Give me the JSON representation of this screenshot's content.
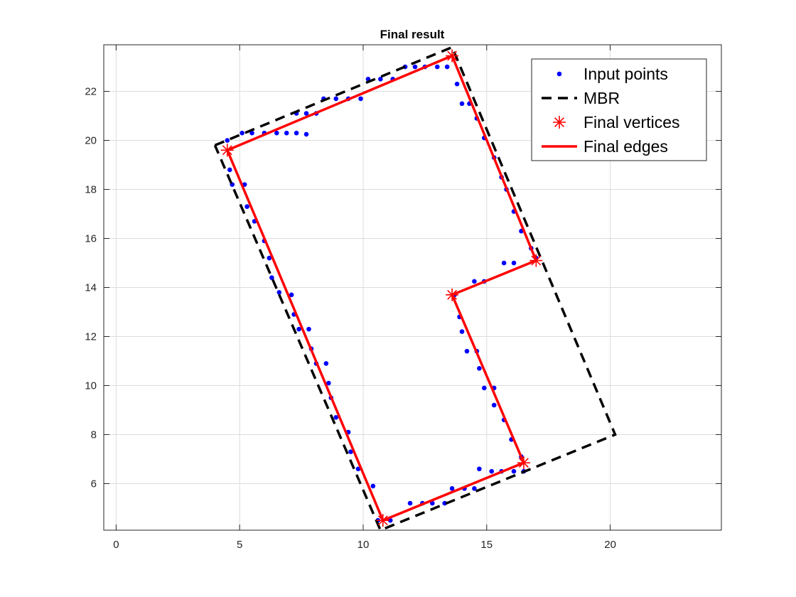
{
  "chart_data": {
    "type": "scatter",
    "title": "Final result",
    "xlabel": "",
    "ylabel": "",
    "xlim": [
      -0.5,
      24.5
    ],
    "ylim": [
      4.1,
      23.9
    ],
    "xticks": [
      0,
      5,
      10,
      15,
      20
    ],
    "yticks": [
      6,
      8,
      10,
      12,
      14,
      16,
      18,
      20,
      22
    ],
    "grid": true,
    "legend_position": "top-right",
    "series": [
      {
        "name": "Input points",
        "kind": "points",
        "color": "#0000ff",
        "points": [
          [
            4.6,
            18.8
          ],
          [
            4.7,
            18.2
          ],
          [
            5.2,
            18.2
          ],
          [
            5.3,
            17.3
          ],
          [
            5.6,
            16.7
          ],
          [
            6.0,
            15.9
          ],
          [
            6.2,
            15.2
          ],
          [
            6.3,
            14.4
          ],
          [
            6.6,
            13.8
          ],
          [
            7.1,
            13.7
          ],
          [
            7.2,
            12.9
          ],
          [
            7.4,
            12.3
          ],
          [
            7.8,
            12.3
          ],
          [
            7.9,
            11.5
          ],
          [
            8.1,
            10.9
          ],
          [
            8.5,
            10.9
          ],
          [
            8.6,
            10.1
          ],
          [
            8.7,
            9.5
          ],
          [
            8.9,
            8.7
          ],
          [
            9.4,
            8.1
          ],
          [
            9.5,
            7.3
          ],
          [
            9.8,
            6.6
          ],
          [
            10.4,
            5.9
          ],
          [
            10.6,
            4.5
          ],
          [
            4.5,
            20.0
          ],
          [
            5.1,
            20.3
          ],
          [
            5.5,
            20.3
          ],
          [
            6.0,
            20.3
          ],
          [
            6.5,
            20.3
          ],
          [
            6.9,
            20.3
          ],
          [
            7.3,
            20.3
          ],
          [
            7.7,
            20.25
          ],
          [
            7.3,
            21.1
          ],
          [
            7.7,
            21.1
          ],
          [
            8.1,
            21.1
          ],
          [
            8.4,
            21.7
          ],
          [
            8.9,
            21.7
          ],
          [
            9.4,
            21.7
          ],
          [
            9.9,
            21.7
          ],
          [
            10.2,
            22.5
          ],
          [
            10.7,
            22.5
          ],
          [
            11.2,
            22.5
          ],
          [
            11.7,
            23.0
          ],
          [
            12.1,
            23.0
          ],
          [
            12.5,
            23.0
          ],
          [
            13.0,
            23.0
          ],
          [
            13.4,
            23.0
          ],
          [
            13.8,
            22.3
          ],
          [
            14.0,
            21.5
          ],
          [
            14.3,
            21.5
          ],
          [
            14.6,
            20.9
          ],
          [
            14.9,
            20.1
          ],
          [
            15.3,
            19.3
          ],
          [
            15.6,
            18.5
          ],
          [
            15.8,
            18.0
          ],
          [
            16.1,
            17.1
          ],
          [
            16.4,
            16.3
          ],
          [
            16.8,
            15.6
          ],
          [
            17.0,
            15.2
          ],
          [
            15.7,
            15.0
          ],
          [
            16.1,
            15.0
          ],
          [
            14.9,
            14.25
          ],
          [
            14.5,
            14.25
          ],
          [
            13.7,
            13.7
          ],
          [
            13.9,
            12.8
          ],
          [
            14.0,
            12.2
          ],
          [
            14.2,
            11.4
          ],
          [
            14.6,
            11.4
          ],
          [
            14.7,
            10.7
          ],
          [
            14.9,
            9.9
          ],
          [
            15.3,
            9.9
          ],
          [
            15.3,
            9.2
          ],
          [
            15.7,
            8.6
          ],
          [
            16.0,
            7.8
          ],
          [
            16.4,
            7.1
          ],
          [
            16.5,
            6.5
          ],
          [
            16.1,
            6.5
          ],
          [
            15.6,
            6.5
          ],
          [
            15.2,
            6.5
          ],
          [
            14.7,
            6.6
          ],
          [
            14.5,
            5.8
          ],
          [
            14.1,
            5.8
          ],
          [
            13.6,
            5.8
          ],
          [
            13.3,
            5.2
          ],
          [
            12.8,
            5.2
          ],
          [
            12.4,
            5.2
          ],
          [
            11.9,
            5.2
          ],
          [
            11.1,
            4.5
          ]
        ]
      },
      {
        "name": "MBR",
        "kind": "dashed-line",
        "color": "#000000",
        "points": [
          [
            4.0,
            19.8
          ],
          [
            13.6,
            23.8
          ],
          [
            20.2,
            8.0
          ],
          [
            10.7,
            4.1
          ],
          [
            4.0,
            19.8
          ]
        ]
      },
      {
        "name": "Final vertices",
        "kind": "star-markers",
        "color": "#ff0000",
        "points": [
          [
            4.5,
            19.6
          ],
          [
            13.6,
            23.45
          ],
          [
            17.0,
            15.1
          ],
          [
            13.6,
            13.7
          ],
          [
            16.5,
            6.85
          ],
          [
            10.8,
            4.5
          ]
        ]
      },
      {
        "name": "Final edges",
        "kind": "solid-line",
        "color": "#ff0000",
        "points": [
          [
            4.5,
            19.6
          ],
          [
            13.6,
            23.45
          ],
          [
            17.0,
            15.1
          ],
          [
            13.6,
            13.7
          ],
          [
            16.5,
            6.85
          ],
          [
            10.8,
            4.5
          ],
          [
            4.5,
            19.6
          ]
        ]
      }
    ]
  }
}
